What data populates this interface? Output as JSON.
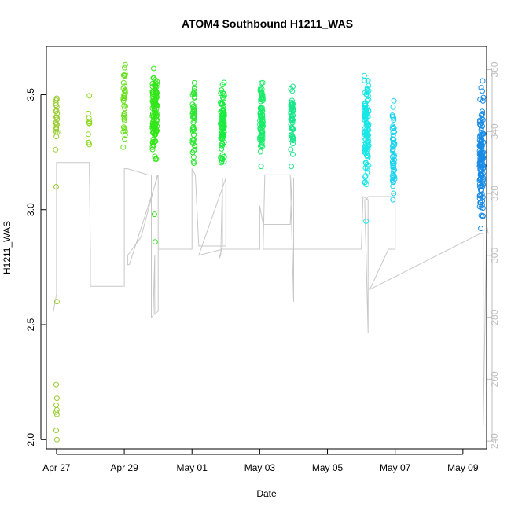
{
  "chart_data": {
    "type": "scatter",
    "title": "ATOM4 Southbound H1211_WAS",
    "xlabel": "Date",
    "ylabel": "H1211_WAS",
    "x_unit": "days since Apr 27",
    "xlim": [
      -0.3,
      12.7
    ],
    "ylim": [
      1.96,
      3.71
    ],
    "x_ticks": [
      {
        "value": 0,
        "label": "Apr 27"
      },
      {
        "value": 2,
        "label": "Apr 29"
      },
      {
        "value": 4,
        "label": "May 01"
      },
      {
        "value": 6,
        "label": "May 03"
      },
      {
        "value": 8,
        "label": "May 05"
      },
      {
        "value": 10,
        "label": "May 07"
      },
      {
        "value": 12,
        "label": "May 09"
      }
    ],
    "y_ticks": [
      {
        "value": 2.0,
        "label": "2.0"
      },
      {
        "value": 2.5,
        "label": "2.5"
      },
      {
        "value": 3.0,
        "label": "3.0"
      },
      {
        "value": 3.5,
        "label": "3.5"
      }
    ],
    "secondary_axis": {
      "label": "",
      "lim": [
        237.5,
        367.5
      ],
      "ticks": [
        {
          "value": 240,
          "label": "240"
        },
        {
          "value": 260,
          "label": "260"
        },
        {
          "value": 280,
          "label": "280"
        },
        {
          "value": 300,
          "label": "300"
        },
        {
          "value": 320,
          "label": "320"
        },
        {
          "value": 340,
          "label": "340"
        },
        {
          "value": 360,
          "label": "360"
        }
      ],
      "color": "#bebebe"
    },
    "clusters": [
      {
        "x": 0.0,
        "spread": 0.06,
        "n": 24,
        "ymin": 3.2,
        "ymax": 3.56,
        "outliers": [
          3.1,
          2.6,
          2.24,
          2.18,
          2.15,
          2.13,
          2.12,
          2.11,
          2.04,
          2.0
        ],
        "color": "#9acd32"
      },
      {
        "x": 0.95,
        "spread": 0.05,
        "n": 10,
        "ymin": 3.24,
        "ymax": 3.51,
        "outliers": [],
        "color": "#8fd81f"
      },
      {
        "x": 2.0,
        "spread": 0.06,
        "n": 38,
        "ymin": 3.26,
        "ymax": 3.64,
        "outliers": [],
        "color": "#66e01a"
      },
      {
        "x": 2.9,
        "spread": 0.14,
        "n": 130,
        "ymin": 3.22,
        "ymax": 3.62,
        "outliers": [
          2.98,
          2.86
        ],
        "color": "#33e61a"
      },
      {
        "x": 4.05,
        "spread": 0.07,
        "n": 55,
        "ymin": 3.2,
        "ymax": 3.59,
        "outliers": [],
        "color": "#2ee633"
      },
      {
        "x": 4.9,
        "spread": 0.11,
        "n": 90,
        "ymin": 3.16,
        "ymax": 3.57,
        "outliers": [],
        "color": "#1aeb40"
      },
      {
        "x": 6.05,
        "spread": 0.09,
        "n": 80,
        "ymin": 3.17,
        "ymax": 3.63,
        "outliers": [],
        "color": "#1aeb6a"
      },
      {
        "x": 6.95,
        "spread": 0.07,
        "n": 55,
        "ymin": 3.18,
        "ymax": 3.59,
        "outliers": [],
        "color": "#1ae68a"
      },
      {
        "x": 9.15,
        "spread": 0.14,
        "n": 120,
        "ymin": 3.07,
        "ymax": 3.64,
        "outliers": [
          2.95
        ],
        "color": "#1ae6e6"
      },
      {
        "x": 9.95,
        "spread": 0.07,
        "n": 55,
        "ymin": 3.0,
        "ymax": 3.5,
        "outliers": [],
        "color": "#1ad2ee"
      },
      {
        "x": 12.55,
        "spread": 0.12,
        "n": 140,
        "ymin": 2.88,
        "ymax": 3.56,
        "outliers": [],
        "color": "#1a8ce6"
      }
    ],
    "secondary_trace": {
      "color": "#c8c8c8",
      "x": [
        -0.1,
        0.0,
        0.0,
        0.97,
        0.97,
        1.0,
        1.0,
        2.0,
        2.0,
        2.1,
        2.7,
        2.8,
        2.8,
        2.85,
        2.9,
        2.9,
        3.0,
        3.0,
        2.98,
        2.5,
        2.1,
        2.1,
        2.15,
        3.0,
        3.0,
        4.0,
        4.0,
        4.1,
        4.2,
        4.9,
        4.8,
        4.85,
        4.9,
        4.9,
        5.0,
        5.0,
        4.2,
        4.2,
        4.9,
        6.0,
        6.0,
        6.1,
        6.9,
        6.95,
        7.0,
        7.0,
        6.9,
        6.1,
        6.15,
        6.9,
        7.0,
        7.0,
        9.0,
        9.05,
        9.2,
        9.2,
        9.1,
        9.15,
        9.2,
        9.3,
        9.9,
        9.95,
        10.0,
        10.0,
        9.8,
        9.25,
        12.5,
        12.6,
        12.6,
        12.7,
        12.75
      ],
      "y": [
        281.5,
        287.5,
        330.0,
        330.0,
        328.0,
        300.0,
        290.0,
        290.0,
        328.0,
        328.0,
        326.0,
        326.0,
        280.0,
        280.5,
        300.0,
        281.0,
        282.0,
        325.0,
        326.0,
        306.0,
        300.0,
        297.0,
        297.0,
        326.0,
        302.0,
        302.0,
        328.0,
        326.0,
        303.0,
        303.0,
        299.0,
        300.0,
        325.0,
        303.0,
        303.0,
        325.0,
        300.0,
        300.0,
        302.0,
        302.0,
        316.0,
        310.0,
        310.0,
        325.0,
        325.0,
        302.0,
        302.0,
        302.0,
        326.0,
        326.0,
        285.0,
        302.0,
        302.0,
        319.0,
        318.0,
        275.0,
        318.0,
        318.0,
        319.0,
        319.0,
        319.0,
        320.0,
        320.0,
        302.0,
        302.0,
        289.0,
        307.0,
        307.0,
        245.0,
        310.0,
        307.0
      ]
    }
  }
}
